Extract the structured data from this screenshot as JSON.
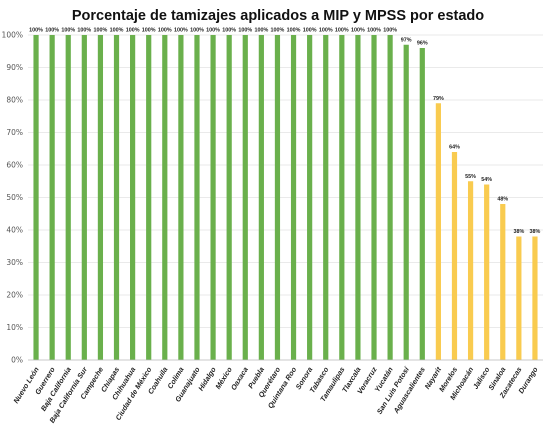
{
  "chart_data": {
    "type": "bar",
    "title": "Porcentaje de tamizajes aplicados a MIP y MPSS por estado",
    "ylim": [
      0,
      100
    ],
    "yticks": [
      "0%",
      "10%",
      "20%",
      "30%",
      "40%",
      "50%",
      "60%",
      "70%",
      "80%",
      "90%",
      "100%"
    ],
    "grid": true,
    "colors": {
      "high": "#6ab04c",
      "low": "#f9cb4f"
    },
    "categories": [
      "Nuevo León",
      "Guerrero",
      "Baja California",
      "Baja California Sur",
      "Campeche",
      "Chiapas",
      "Chihuahua",
      "Ciudad de México",
      "Coahuila",
      "Colima",
      "Guanajuato",
      "Hidalgo",
      "México",
      "Oaxaca",
      "Puebla",
      "Querétaro",
      "Quintana Roo",
      "Sonora",
      "Tabasco",
      "Tamaulipas",
      "Tlaxcala",
      "Veracruz",
      "Yucatán",
      "San Luis Potosí",
      "Aguascalientes",
      "Nayarit",
      "Morelos",
      "Michoacán",
      "Jalisco",
      "Sinaloa",
      "Zacatecas",
      "Durango"
    ],
    "values": [
      100,
      100,
      100,
      100,
      100,
      100,
      100,
      100,
      100,
      100,
      100,
      100,
      100,
      100,
      100,
      100,
      100,
      100,
      100,
      100,
      100,
      100,
      100,
      97,
      96,
      79,
      64,
      55,
      54,
      48,
      38,
      38
    ],
    "data_labels": [
      "100%",
      "100%",
      "100%",
      "100%",
      "100%",
      "100%",
      "100%",
      "100%",
      "100%",
      "100%",
      "100%",
      "100%",
      "100%",
      "100%",
      "100%",
      "100%",
      "100%",
      "100%",
      "100%",
      "100%",
      "100%",
      "100%",
      "100%",
      "97%",
      "96%",
      "79%",
      "64%",
      "55%",
      "54%",
      "48%",
      "38%",
      "38%"
    ],
    "highlight": [
      "high",
      "high",
      "high",
      "high",
      "high",
      "high",
      "high",
      "high",
      "high",
      "high",
      "high",
      "high",
      "high",
      "high",
      "high",
      "high",
      "high",
      "high",
      "high",
      "high",
      "high",
      "high",
      "high",
      "high",
      "high",
      "low",
      "low",
      "low",
      "low",
      "low",
      "low",
      "low"
    ]
  }
}
